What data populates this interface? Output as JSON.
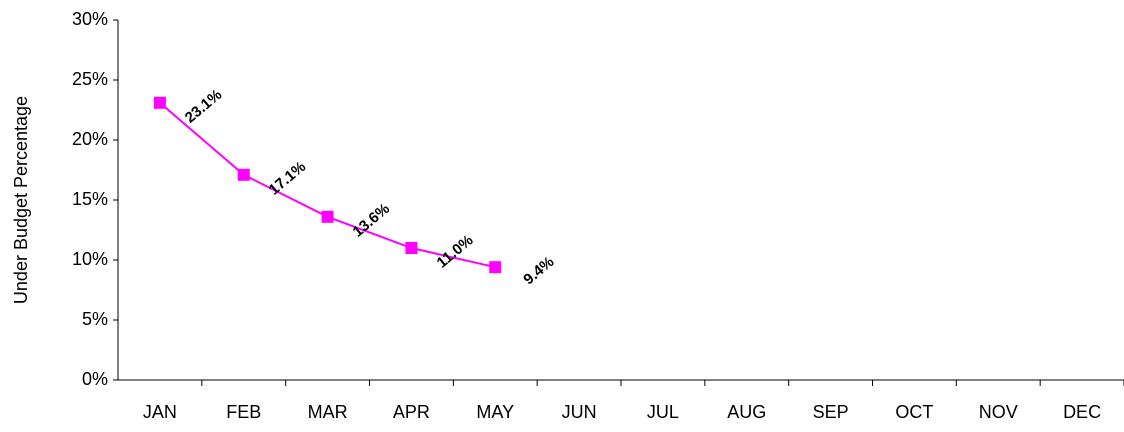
{
  "chart_data": {
    "type": "line",
    "y_label": "Under Budget Percentage",
    "categories": [
      "JAN",
      "FEB",
      "MAR",
      "APR",
      "MAY",
      "JUN",
      "JUL",
      "AUG",
      "SEP",
      "OCT",
      "NOV",
      "DEC"
    ],
    "series": [
      {
        "name": "Under Budget",
        "color": "#ff00ff",
        "values": [
          23.1,
          17.1,
          13.6,
          11.0,
          9.4,
          null,
          null,
          null,
          null,
          null,
          null,
          null
        ],
        "value_labels": [
          "23.1%",
          "17.1%",
          "13.6%",
          "11.0%",
          "9.4%",
          null,
          null,
          null,
          null,
          null,
          null,
          null
        ]
      }
    ],
    "ylim": [
      0,
      30
    ],
    "yticks": [
      {
        "value": 0,
        "label": "0%"
      },
      {
        "value": 5,
        "label": "5%"
      },
      {
        "value": 10,
        "label": "10%"
      },
      {
        "value": 15,
        "label": "15%"
      },
      {
        "value": 20,
        "label": "20%"
      },
      {
        "value": 25,
        "label": "25%"
      },
      {
        "value": 30,
        "label": "30%"
      }
    ]
  }
}
